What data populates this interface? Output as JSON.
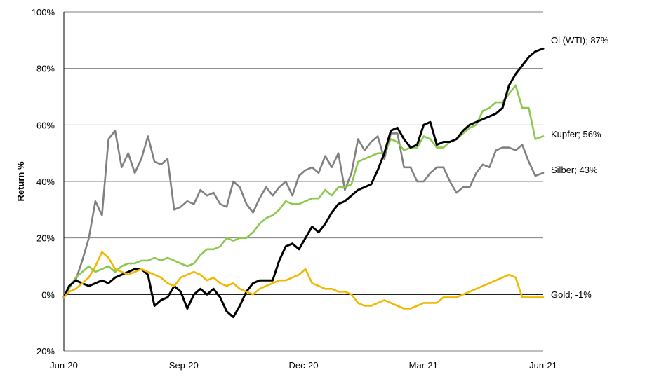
{
  "chart_data": {
    "type": "line",
    "title": "",
    "ylabel": "Return %",
    "xlabel": "",
    "ylim": [
      -20,
      100
    ],
    "yticks": [
      "-20%",
      "0%",
      "20%",
      "40%",
      "60%",
      "80%",
      "100%"
    ],
    "xticks": [
      "Jun-20",
      "Sep-20",
      "Dec-20",
      "Mar-21",
      "Jun-21"
    ],
    "grid": "horizontal",
    "x": [
      "2020-06-01",
      "2020-06-05",
      "2020-06-10",
      "2020-06-15",
      "2020-06-20",
      "2020-06-25",
      "2020-06-30",
      "2020-07-05",
      "2020-07-10",
      "2020-07-15",
      "2020-07-20",
      "2020-07-25",
      "2020-07-30",
      "2020-08-04",
      "2020-08-09",
      "2020-08-14",
      "2020-08-19",
      "2020-08-24",
      "2020-08-29",
      "2020-09-03",
      "2020-09-08",
      "2020-09-13",
      "2020-09-18",
      "2020-09-23",
      "2020-09-28",
      "2020-10-03",
      "2020-10-08",
      "2020-10-13",
      "2020-10-18",
      "2020-10-23",
      "2020-10-28",
      "2020-11-02",
      "2020-11-07",
      "2020-11-12",
      "2020-11-17",
      "2020-11-22",
      "2020-11-27",
      "2020-12-02",
      "2020-12-07",
      "2020-12-12",
      "2020-12-17",
      "2020-12-22",
      "2020-12-27",
      "2021-01-01",
      "2021-01-06",
      "2021-01-11",
      "2021-01-16",
      "2021-01-21",
      "2021-01-26",
      "2021-01-31",
      "2021-02-05",
      "2021-02-10",
      "2021-02-15",
      "2021-02-20",
      "2021-02-25",
      "2021-03-02",
      "2021-03-07",
      "2021-03-12",
      "2021-03-17",
      "2021-03-22",
      "2021-03-27",
      "2021-04-01",
      "2021-04-06",
      "2021-04-11",
      "2021-04-16",
      "2021-04-21",
      "2021-04-26",
      "2021-05-01",
      "2021-05-06",
      "2021-05-11",
      "2021-05-16",
      "2021-05-21",
      "2021-05-26",
      "2021-06-01"
    ],
    "series": [
      {
        "name": "Silber",
        "end_label": "Silber; 43%",
        "color": "#808080",
        "values": [
          -1,
          3,
          5,
          12,
          20,
          33,
          28,
          55,
          58,
          45,
          50,
          43,
          48,
          56,
          47,
          46,
          48,
          30,
          31,
          33,
          32,
          37,
          35,
          36,
          32,
          31,
          40,
          38,
          32,
          29,
          34,
          38,
          35,
          38,
          40,
          35,
          42,
          44,
          45,
          43,
          49,
          45,
          50,
          37,
          43,
          55,
          51,
          54,
          56,
          48,
          57,
          57,
          45,
          45,
          40,
          40,
          43,
          45,
          45,
          40,
          36,
          38,
          38,
          43,
          46,
          45,
          51,
          52,
          52,
          51,
          53,
          47,
          42,
          43
        ]
      },
      {
        "name": "Kupfer",
        "end_label": "Kupfer; 56%",
        "color": "#8cc850",
        "values": [
          -1,
          2,
          6,
          8,
          10,
          8,
          9,
          10,
          8,
          10,
          11,
          11,
          12,
          12,
          13,
          12,
          13,
          12,
          11,
          10,
          11,
          14,
          16,
          16,
          17,
          20,
          19,
          20,
          20,
          22,
          25,
          27,
          28,
          30,
          33,
          32,
          32,
          33,
          34,
          34,
          37,
          35,
          38,
          38,
          39,
          47,
          48,
          49,
          50,
          50,
          55,
          54,
          51,
          52,
          52,
          56,
          55,
          52,
          52,
          54,
          55,
          57,
          59,
          60,
          65,
          66,
          68,
          68,
          71,
          74,
          66,
          66,
          55,
          56
        ]
      },
      {
        "name": "Öl (WTI)",
        "end_label": "Öl (WTI); 87%",
        "color": "#000000",
        "values": [
          -1,
          3,
          5,
          4,
          3,
          4,
          5,
          4,
          6,
          7,
          8,
          9,
          9,
          7,
          -4,
          -2,
          -1,
          3,
          1,
          -5,
          0,
          2,
          0,
          2,
          -1,
          -6,
          -8,
          -4,
          1,
          4,
          5,
          5,
          5,
          12,
          17,
          18,
          16,
          20,
          24,
          22,
          25,
          29,
          32,
          33,
          35,
          37,
          38,
          39,
          44,
          50,
          58,
          59,
          55,
          52,
          53,
          60,
          61,
          53,
          54,
          54,
          55,
          58,
          60,
          61,
          62,
          63,
          64,
          66,
          74,
          78,
          81,
          84,
          86,
          87
        ]
      },
      {
        "name": "Gold",
        "end_label": "Gold; -1%",
        "color": "#f2b800",
        "values": [
          -1,
          1,
          2,
          4,
          6,
          10,
          15,
          13,
          9,
          8,
          7,
          8,
          9,
          8,
          7,
          6,
          4,
          3,
          6,
          7,
          8,
          7,
          5,
          6,
          4,
          3,
          4,
          2,
          1,
          0,
          2,
          3,
          4,
          5,
          5,
          6,
          7,
          9,
          4,
          3,
          2,
          2,
          1,
          1,
          0,
          -3,
          -4,
          -4,
          -3,
          -2,
          -3,
          -4,
          -5,
          -5,
          -4,
          -3,
          -3,
          -3,
          -1,
          -1,
          -1,
          0,
          1,
          2,
          3,
          4,
          5,
          6,
          7,
          6,
          -1,
          -1,
          -1,
          -1
        ]
      }
    ]
  }
}
